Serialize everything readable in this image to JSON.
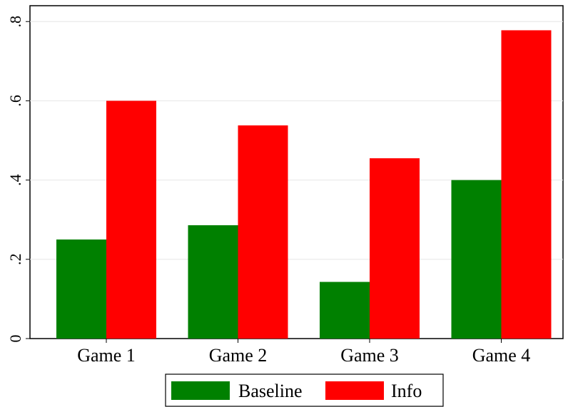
{
  "chart_data": {
    "type": "bar",
    "categories": [
      "Game 1",
      "Game 2",
      "Game 3",
      "Game 4"
    ],
    "series": [
      {
        "name": "Baseline",
        "color": "#008000",
        "values": [
          0.25,
          0.286,
          0.143,
          0.4
        ]
      },
      {
        "name": "Info",
        "color": "#ff0000",
        "values": [
          0.6,
          0.538,
          0.455,
          0.778
        ]
      }
    ],
    "yticks": [
      0,
      0.2,
      0.4,
      0.6,
      0.8
    ],
    "ytick_labels": [
      "0",
      ".2",
      ".4",
      ".6",
      ".8"
    ],
    "ylim": [
      0,
      0.84
    ],
    "grid": true,
    "legend_position": "bottom"
  }
}
